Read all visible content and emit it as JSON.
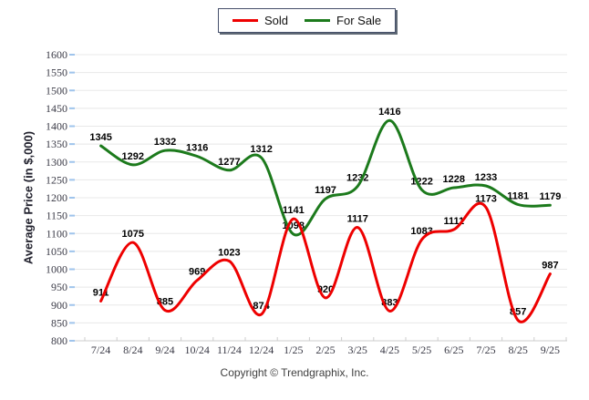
{
  "legend": {
    "items": [
      {
        "label": "Sold",
        "color": "#ee0000"
      },
      {
        "label": "For Sale",
        "color": "#1c7a1c"
      }
    ]
  },
  "chart_data": {
    "type": "line",
    "smoothing": "spline",
    "categories": [
      "7/24",
      "8/24",
      "9/24",
      "10/24",
      "11/24",
      "12/24",
      "1/25",
      "2/25",
      "3/25",
      "4/25",
      "5/25",
      "6/25",
      "7/25",
      "8/25",
      "9/25"
    ],
    "series": [
      {
        "name": "Sold",
        "color": "#ee0000",
        "values": [
          911,
          1075,
          885,
          969,
          1023,
          874,
          1141,
          920,
          1117,
          883,
          1083,
          1111,
          1173,
          857,
          987
        ]
      },
      {
        "name": "For Sale",
        "color": "#1c7a1c",
        "values": [
          1345,
          1292,
          1332,
          1316,
          1277,
          1312,
          1098,
          1197,
          1232,
          1416,
          1222,
          1228,
          1233,
          1181,
          1179
        ]
      }
    ],
    "xlabel": "",
    "ylabel": "Average Price (in $,000)",
    "ylim": [
      800,
      1600
    ],
    "ytick_step": 50,
    "grid": true,
    "legend_position": "top-center",
    "colors": {
      "grid": "#e8e8e8",
      "axis": "#cccccc",
      "y_tick": "#9fc4ec",
      "tick_label": "#3a3a46",
      "data_label": "#000000"
    }
  },
  "footer": {
    "text": "Copyright © Trendgraphix, Inc."
  }
}
